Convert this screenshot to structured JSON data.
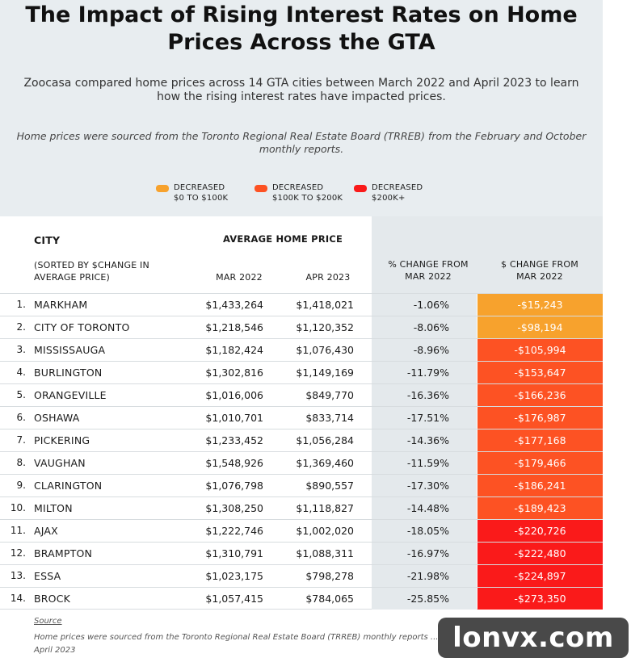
{
  "title": "The Impact of Rising Interest Rates on Home Prices Across the GTA",
  "subtitle": "Zoocasa compared home prices across 14 GTA cities between March 2022 and April 2023 to learn how the rising interest rates have impacted prices.",
  "note": "Home prices were sourced from the Toronto Regional Real Estate Board (TRREB) from the February and October monthly reports.",
  "legend": [
    {
      "line1": "DECREASED",
      "line2": "$0 TO $100K",
      "color": "#f7a22d"
    },
    {
      "line1": "DECREASED",
      "line2": "$100K TO $200K",
      "color": "#fd5223"
    },
    {
      "line1": "DECREASED",
      "line2": "$200K+",
      "color": "#fa1a1a"
    }
  ],
  "headers": {
    "city": "CITY",
    "sorted": "(SORTED BY $CHANGE IN AVERAGE PRICE)",
    "avg_price": "AVERAGE HOME PRICE",
    "mar": "MAR 2022",
    "apr": "APR 2023",
    "pct_change": "% CHANGE FROM MAR 2022",
    "dollar_change": "$ CHANGE FROM MAR 2022"
  },
  "rows": [
    {
      "num": "1.",
      "city": "MARKHAM",
      "mar": "$1,433,264",
      "apr": "$1,418,021",
      "pct": "-1.06%",
      "chg": "-$15,243",
      "color": "#f7a22d"
    },
    {
      "num": "2.",
      "city": "CITY OF TORONTO",
      "mar": "$1,218,546",
      "apr": "$1,120,352",
      "pct": "-8.06%",
      "chg": "-$98,194",
      "color": "#f7a22d"
    },
    {
      "num": "3.",
      "city": "MISSISSAUGA",
      "mar": "$1,182,424",
      "apr": "$1,076,430",
      "pct": "-8.96%",
      "chg": "-$105,994",
      "color": "#fd5223"
    },
    {
      "num": "4.",
      "city": "BURLINGTON",
      "mar": "$1,302,816",
      "apr": "$1,149,169",
      "pct": "-11.79%",
      "chg": "-$153,647",
      "color": "#fd5223"
    },
    {
      "num": "5.",
      "city": "ORANGEVILLE",
      "mar": "$1,016,006",
      "apr": "$849,770",
      "pct": "-16.36%",
      "chg": "-$166,236",
      "color": "#fd5223"
    },
    {
      "num": "6.",
      "city": "OSHAWA",
      "mar": "$1,010,701",
      "apr": "$833,714",
      "pct": "-17.51%",
      "chg": "-$176,987",
      "color": "#fd5223"
    },
    {
      "num": "7.",
      "city": "PICKERING",
      "mar": "$1,233,452",
      "apr": "$1,056,284",
      "pct": "-14.36%",
      "chg": "-$177,168",
      "color": "#fd5223"
    },
    {
      "num": "8.",
      "city": "VAUGHAN",
      "mar": "$1,548,926",
      "apr": "$1,369,460",
      "pct": "-11.59%",
      "chg": "-$179,466",
      "color": "#fd5223"
    },
    {
      "num": "9.",
      "city": "CLARINGTON",
      "mar": "$1,076,798",
      "apr": "$890,557",
      "pct": "-17.30%",
      "chg": "-$186,241",
      "color": "#fd5223"
    },
    {
      "num": "10.",
      "city": "MILTON",
      "mar": "$1,308,250",
      "apr": "$1,118,827",
      "pct": "-14.48%",
      "chg": "-$189,423",
      "color": "#fd5223"
    },
    {
      "num": "11.",
      "city": "AJAX",
      "mar": "$1,222,746",
      "apr": "$1,002,020",
      "pct": "-18.05%",
      "chg": "-$220,726",
      "color": "#fa1a1a"
    },
    {
      "num": "12.",
      "city": "BRAMPTON",
      "mar": "$1,310,791",
      "apr": "$1,088,311",
      "pct": "-16.97%",
      "chg": "-$222,480",
      "color": "#fa1a1a"
    },
    {
      "num": "13.",
      "city": "ESSA",
      "mar": "$1,023,175",
      "apr": "$798,278",
      "pct": "-21.98%",
      "chg": "-$224,897",
      "color": "#fa1a1a"
    },
    {
      "num": "14.",
      "city": "BROCK",
      "mar": "$1,057,415",
      "apr": "$784,065",
      "pct": "-25.85%",
      "chg": "-$273,350",
      "color": "#fa1a1a"
    }
  ],
  "source_label": "Source",
  "source_note": "Home prices were sourced from the Toronto Regional Real Estate Board (TRREB) monthly reports ... April 2023",
  "watermark": "lonvx.com"
}
